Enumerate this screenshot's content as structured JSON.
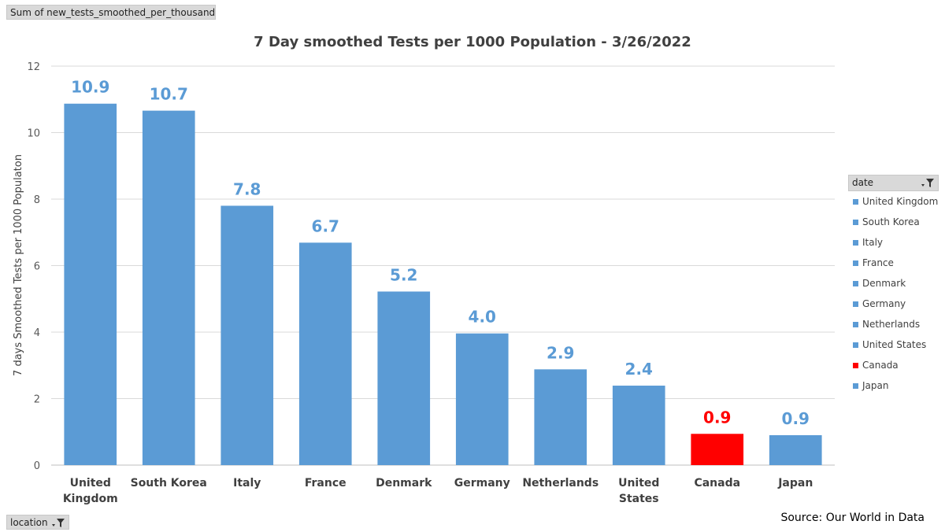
{
  "values_field": {
    "label": "Sum of new_tests_smoothed_per_thousand"
  },
  "location_field": {
    "label": "location",
    "icon": "filter-icon"
  },
  "legend": {
    "title": "date",
    "icon": "filter-icon"
  },
  "source": "Source: Our World in Data",
  "colors": {
    "bar": "#5b9bd5",
    "highlight": "#ff0000",
    "grid": "#d9d9d9"
  },
  "chart_data": {
    "type": "bar",
    "title": "7 Day smoothed Tests per 1000 Population - 3/26/2022",
    "xlabel": "",
    "ylabel": "7 days Smoothed Tests per 1000 Populaton",
    "ylim": [
      0,
      12
    ],
    "yticks": [
      0,
      2,
      4,
      6,
      8,
      10,
      12
    ],
    "grid": true,
    "legend_position": "right",
    "categories": [
      "United Kingdom",
      "South Korea",
      "Italy",
      "France",
      "Denmark",
      "Germany",
      "Netherlands",
      "United States",
      "Canada",
      "Japan"
    ],
    "values": [
      10.87,
      10.66,
      7.8,
      6.69,
      5.22,
      3.96,
      2.88,
      2.39,
      0.94,
      0.9
    ],
    "data_labels": [
      "10.9",
      "10.7",
      "7.8",
      "6.7",
      "5.2",
      "4.0",
      "2.9",
      "2.4",
      "0.9",
      "0.9"
    ],
    "highlight": [
      "Canada"
    ]
  }
}
